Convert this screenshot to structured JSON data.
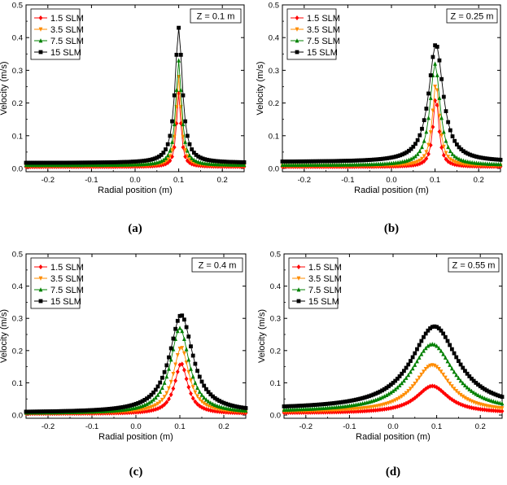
{
  "chart_data": [
    {
      "type": "line",
      "panel_label": "(a)",
      "zlabel": "Z = 0.1 m",
      "xlabel": "Radial position (m)",
      "ylabel": "Velocity (m/s)",
      "xlim": [
        -0.25,
        0.25
      ],
      "ylim": [
        -0.01,
        0.5
      ],
      "xticks": [
        "-0.2",
        "-0.1",
        "0.0",
        "0.1",
        "0.2"
      ],
      "yticks": [
        "0.0",
        "0.1",
        "0.2",
        "0.3",
        "0.4",
        "0.5"
      ],
      "legend_position": "top-left",
      "grid": false,
      "series": [
        {
          "name": "1.5 SLM",
          "color": "#ff0000",
          "marker": "diamond",
          "baseline": 0.005,
          "peak": 0.23,
          "center": 0.1,
          "width": 0.006
        },
        {
          "name": "3.5 SLM",
          "color": "#ff8c00",
          "marker": "triangle-down",
          "baseline": 0.007,
          "peak": 0.28,
          "center": 0.1,
          "width": 0.007
        },
        {
          "name": "7.5 SLM",
          "color": "#008000",
          "marker": "triangle",
          "baseline": 0.01,
          "peak": 0.33,
          "center": 0.1,
          "width": 0.008
        },
        {
          "name": "15  SLM",
          "color": "#000000",
          "marker": "square",
          "baseline": 0.017,
          "peak": 0.43,
          "center": 0.1,
          "width": 0.01
        }
      ]
    },
    {
      "type": "line",
      "panel_label": "(b)",
      "zlabel": "Z = 0.25 m",
      "xlabel": "Radial position (m)",
      "ylabel": "Velocity (m/s)",
      "xlim": [
        -0.25,
        0.25
      ],
      "ylim": [
        -0.01,
        0.5
      ],
      "xticks": [
        "-0.2",
        "-0.1",
        "0.0",
        "0.1",
        "0.2"
      ],
      "yticks": [
        "0.0",
        "0.1",
        "0.2",
        "0.3",
        "0.4",
        "0.5"
      ],
      "legend_position": "top-left",
      "grid": false,
      "series": [
        {
          "name": "1.5 SLM",
          "color": "#ff0000",
          "marker": "diamond",
          "baseline": 0.005,
          "peak": 0.22,
          "center": 0.102,
          "width": 0.008
        },
        {
          "name": "3.5 SLM",
          "color": "#ff8c00",
          "marker": "triangle-down",
          "baseline": 0.007,
          "peak": 0.26,
          "center": 0.102,
          "width": 0.01
        },
        {
          "name": "7.5 SLM",
          "color": "#008000",
          "marker": "triangle",
          "baseline": 0.01,
          "peak": 0.32,
          "center": 0.1,
          "width": 0.014
        },
        {
          "name": "15  SLM",
          "color": "#000000",
          "marker": "square",
          "baseline": 0.02,
          "peak": 0.38,
          "center": 0.102,
          "width": 0.02
        }
      ]
    },
    {
      "type": "line",
      "panel_label": "(c)",
      "zlabel": "Z = 0.4 m",
      "xlabel": "Radial position (m)",
      "ylabel": "Velocity (m/s)",
      "xlim": [
        -0.25,
        0.25
      ],
      "ylim": [
        -0.01,
        0.5
      ],
      "xticks": [
        "-0.2",
        "-0.1",
        "0.0",
        "0.1",
        "0.2"
      ],
      "yticks": [
        "0.0",
        "0.1",
        "0.2",
        "0.3",
        "0.4",
        "0.5"
      ],
      "legend_position": "top-left",
      "grid": false,
      "series": [
        {
          "name": "1.5 SLM",
          "color": "#ff0000",
          "marker": "diamond",
          "baseline": 0.004,
          "peak": 0.16,
          "center": 0.103,
          "width": 0.018
        },
        {
          "name": "3.5 SLM",
          "color": "#ff8c00",
          "marker": "triangle-down",
          "baseline": 0.005,
          "peak": 0.21,
          "center": 0.103,
          "width": 0.022
        },
        {
          "name": "7.5 SLM",
          "color": "#008000",
          "marker": "triangle",
          "baseline": 0.006,
          "peak": 0.27,
          "center": 0.1,
          "width": 0.026
        },
        {
          "name": "15  SLM",
          "color": "#000000",
          "marker": "square",
          "baseline": 0.008,
          "peak": 0.31,
          "center": 0.103,
          "width": 0.032
        }
      ]
    },
    {
      "type": "line",
      "panel_label": "(d)",
      "zlabel": "Z = 0.55 m",
      "xlabel": "Radial position (m)",
      "ylabel": "Velocity (m/s)",
      "xlim": [
        -0.25,
        0.25
      ],
      "ylim": [
        -0.01,
        0.5
      ],
      "xticks": [
        "-0.2",
        "-0.1",
        "0.0",
        "0.1",
        "0.2"
      ],
      "yticks": [
        "0.0",
        "0.1",
        "0.2",
        "0.3",
        "0.4",
        "0.5"
      ],
      "legend_position": "top-left",
      "grid": false,
      "series": [
        {
          "name": "1.5 SLM",
          "color": "#ff0000",
          "marker": "diamond",
          "baseline": 0.006,
          "peak": 0.09,
          "center": 0.09,
          "width": 0.045
        },
        {
          "name": "3.5 SLM",
          "color": "#ff8c00",
          "marker": "triangle-down",
          "baseline": 0.008,
          "peak": 0.155,
          "center": 0.09,
          "width": 0.05
        },
        {
          "name": "7.5 SLM",
          "color": "#008000",
          "marker": "triangle",
          "baseline": 0.01,
          "peak": 0.22,
          "center": 0.09,
          "width": 0.06
        },
        {
          "name": "15  SLM",
          "color": "#000000",
          "marker": "square",
          "baseline": 0.018,
          "peak": 0.275,
          "center": 0.095,
          "width": 0.065
        }
      ]
    }
  ]
}
